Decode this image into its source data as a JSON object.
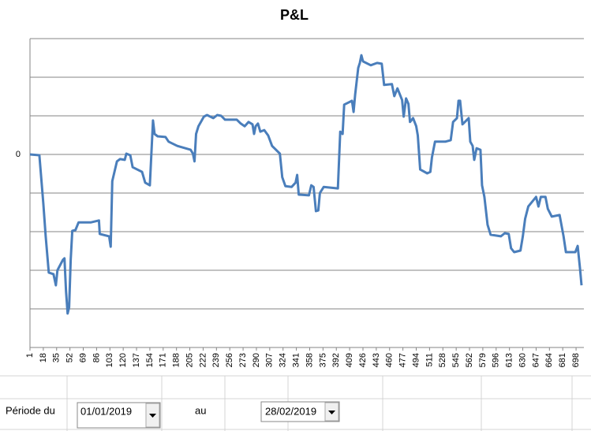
{
  "chart_data": {
    "type": "line",
    "title": "P&L",
    "x": [
      1,
      13,
      18,
      21,
      25,
      31,
      34,
      36,
      43,
      45,
      47,
      49,
      51,
      53,
      55,
      59,
      63,
      79,
      89,
      90,
      102,
      104,
      106,
      112,
      116,
      122,
      124,
      129,
      132,
      144,
      148,
      154,
      158,
      160,
      164,
      174,
      178,
      189,
      206,
      209,
      211,
      213,
      216,
      223,
      227,
      235,
      240,
      245,
      250,
      265,
      270,
      275,
      280,
      285,
      287,
      289,
      292,
      295,
      300,
      305,
      310,
      320,
      323,
      327,
      335,
      340,
      342,
      344,
      357,
      360,
      363,
      366,
      369,
      371,
      376,
      394,
      397,
      400,
      402,
      412,
      414,
      416,
      420,
      422,
      424,
      426,
      436,
      444,
      450,
      453,
      463,
      466,
      470,
      476,
      478,
      481,
      484,
      486,
      490,
      494,
      496,
      499,
      508,
      512,
      514,
      518,
      531,
      538,
      541,
      546,
      548,
      550,
      553,
      561,
      563,
      566,
      568,
      571,
      576,
      578,
      581,
      585,
      589,
      602,
      607,
      612,
      615,
      619,
      627,
      630,
      633,
      637,
      647,
      650,
      653,
      659,
      662,
      667,
      677,
      682,
      685,
      697,
      700,
      703,
      705
    ],
    "values": [
      0,
      -0.02,
      -1.27,
      -2.12,
      -3.06,
      -3.1,
      -3.39,
      -3.0,
      -2.73,
      -2.69,
      -3.55,
      -4.12,
      -3.96,
      -2.73,
      -1.98,
      -1.96,
      -1.76,
      -1.76,
      -1.71,
      -2.06,
      -2.12,
      -2.39,
      -0.69,
      -0.18,
      -0.12,
      -0.14,
      0.02,
      -0.02,
      -0.33,
      -0.45,
      -0.73,
      -0.8,
      0.88,
      0.53,
      0.47,
      0.45,
      0.33,
      0.22,
      0.12,
      0.02,
      -0.18,
      0.53,
      0.73,
      0.98,
      1.02,
      0.94,
      1.02,
      1.0,
      0.9,
      0.9,
      0.8,
      0.73,
      0.84,
      0.78,
      0.53,
      0.73,
      0.8,
      0.59,
      0.63,
      0.49,
      0.22,
      0.02,
      -0.59,
      -0.82,
      -0.84,
      -0.73,
      -0.53,
      -1.04,
      -1.06,
      -0.8,
      -0.84,
      -1.47,
      -1.45,
      -1.0,
      -0.84,
      -0.88,
      0.59,
      0.53,
      1.29,
      1.39,
      1.1,
      1.55,
      2.24,
      2.37,
      2.57,
      2.41,
      2.31,
      2.37,
      2.35,
      1.8,
      1.82,
      1.51,
      1.71,
      1.41,
      0.98,
      1.45,
      1.31,
      0.84,
      0.94,
      0.73,
      0.49,
      -0.39,
      -0.49,
      -0.45,
      -0.08,
      0.33,
      0.33,
      0.37,
      0.84,
      0.94,
      1.39,
      1.39,
      0.78,
      0.94,
      0.33,
      0.22,
      -0.14,
      0.16,
      0.12,
      -0.8,
      -1.1,
      -1.82,
      -2.08,
      -2.12,
      -2.04,
      -2.06,
      -2.43,
      -2.53,
      -2.49,
      -2.12,
      -1.67,
      -1.35,
      -1.1,
      -1.35,
      -1.1,
      -1.1,
      -1.41,
      -1.61,
      -1.57,
      -2.12,
      -2.53,
      -2.53,
      -2.37,
      -2.94,
      -3.39
    ],
    "color": "#4a7ebb",
    "xlim": [
      1,
      708
    ],
    "xticks": [
      1,
      18,
      35,
      52,
      69,
      86,
      103,
      120,
      137,
      154,
      171,
      188,
      205,
      222,
      239,
      256,
      273,
      290,
      307,
      324,
      341,
      358,
      375,
      392,
      409,
      426,
      443,
      460,
      477,
      494,
      511,
      528,
      545,
      562,
      579,
      596,
      613,
      630,
      647,
      664,
      681,
      698
    ],
    "ylim": [
      -5,
      3
    ],
    "yticks": [
      0
    ],
    "ygrid": [
      -4,
      -3,
      -2,
      -1,
      0,
      1,
      2,
      3
    ],
    "grid": true
  },
  "form": {
    "label_from": "Période du",
    "date_from": "01/01/2019",
    "label_to": "au",
    "date_to": "28/02/2019"
  }
}
